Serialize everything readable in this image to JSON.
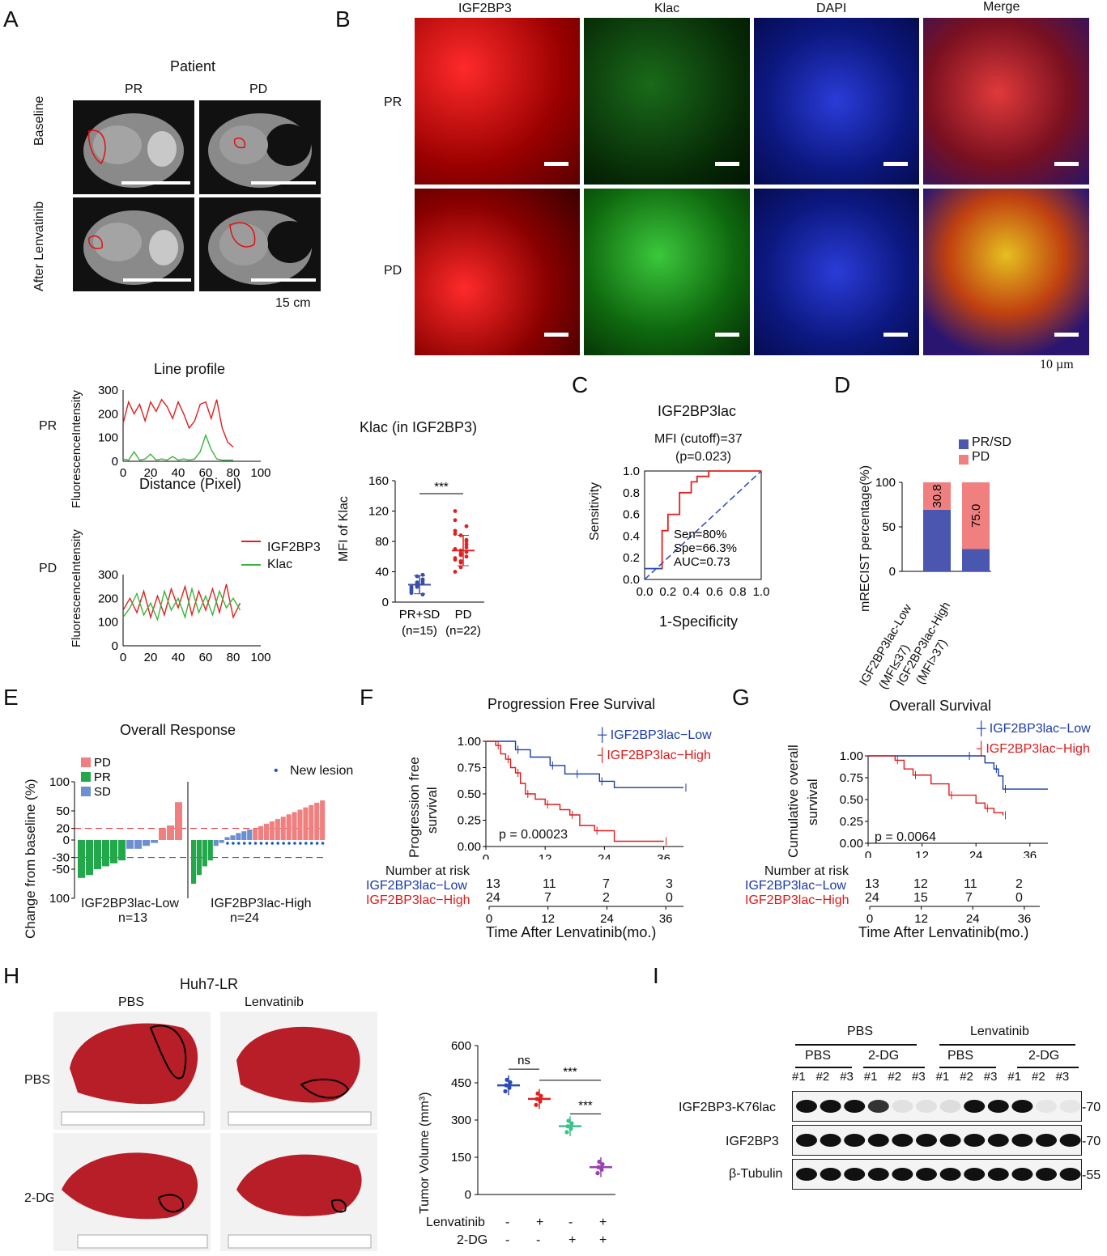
{
  "panels": {
    "A": "A",
    "B": "B",
    "C": "C",
    "D": "D",
    "E": "E",
    "F": "F",
    "G": "G",
    "H": "H",
    "I": "I"
  },
  "panelA": {
    "title": "Patient",
    "col_pr": "PR",
    "col_pd": "PD",
    "row_baseline": "Baseline",
    "row_after": "After Lenvatinib",
    "scale": "15 cm"
  },
  "panelB": {
    "cols": [
      "IGF2BP3",
      "Klac",
      "DAPI",
      "Merge"
    ],
    "rows": [
      "PR",
      "PD"
    ],
    "scale": "10 µm"
  },
  "lineProfile": {
    "title": "Line profile",
    "row_pr": "PR",
    "row_pd": "PD",
    "ylabel": "FluorescenceIntensity",
    "xlabel": "Distance (Pixel)",
    "legend": [
      "IGF2BP3",
      "Klac"
    ],
    "xticks": [
      "0",
      "20",
      "40",
      "60",
      "80",
      "100"
    ],
    "yticks": [
      "0",
      "100",
      "200",
      "300"
    ]
  },
  "klac": {
    "title": "Klac (in IGF2BP3)",
    "ylabel": "MFI of Klac",
    "sig": "***",
    "groups": [
      {
        "label": "PR+SD",
        "n": "(n=15)"
      },
      {
        "label": "PD",
        "n": "(n=22)"
      }
    ],
    "yticks": [
      "0",
      "40",
      "80",
      "120",
      "160"
    ]
  },
  "panelC": {
    "title": "IGF2BP3lac",
    "sub1": "MFI (cutoff)=37",
    "sub2": "(p=0.023)",
    "ylabel": "Sensitivity",
    "xlabel": "1-Specificity",
    "stats": [
      "Sen=80%",
      "Spe=66.3%",
      "AUC=0.73"
    ],
    "ticks": [
      "0.0",
      "0.2",
      "0.4",
      "0.6",
      "0.8",
      "1.0"
    ]
  },
  "panelD": {
    "ylabel": "mRECIST  percentage(%)",
    "legend": [
      "PR/SD",
      "PD"
    ],
    "yticks": [
      "0",
      "50",
      "100"
    ],
    "bars": [
      {
        "label": "IGF2BP3lac-Low",
        "sub": "(MFI≤37)",
        "pd": "30.8"
      },
      {
        "label": "IGF2BP3lac-High",
        "sub": "(MFI>37)",
        "pd": "75.0"
      }
    ]
  },
  "panelE": {
    "title": "Overall Response",
    "ylabel": "Change from baseline (%)",
    "legend": [
      "PD",
      "PR",
      "SD"
    ],
    "new_lesion": "New lesion",
    "yticks": [
      "100",
      "50",
      "20",
      "0",
      "-30",
      "-50",
      "-100"
    ],
    "grp_low": "IGF2BP3lac-Low",
    "n_low": "n=13",
    "grp_high": "IGF2BP3lac-High",
    "n_high": "n=24"
  },
  "panelF": {
    "title": "Progression Free Survival",
    "ylabel1": "Progression free",
    "ylabel2": "survival",
    "legend": [
      "IGF2BP3lac−Low",
      "IGF2BP3lac−High"
    ],
    "p": "p = 0.00023",
    "risk_title": "Number at risk",
    "risk_low": [
      "13",
      "11",
      "7",
      "3"
    ],
    "risk_high": [
      "24",
      "7",
      "2",
      "0"
    ],
    "xlabel": "Time After Lenvatinib(mo.)",
    "xticks": [
      "0",
      "12",
      "24",
      "36"
    ],
    "yticks": [
      "0.00",
      "0.25",
      "0.50",
      "0.75",
      "1.00"
    ]
  },
  "panelG": {
    "title": "Overall Survival",
    "ylabel1": "Cumulative overall",
    "ylabel2": "survival",
    "legend": [
      "IGF2BP3lac−Low",
      "IGF2BP3lac−High"
    ],
    "p": "p = 0.0064",
    "risk_title": "Number at risk",
    "risk_low": [
      "13",
      "12",
      "11",
      "2"
    ],
    "risk_high": [
      "24",
      "15",
      "7",
      "0"
    ],
    "xlabel": "Time After Lenvatinib(mo.)",
    "xticks": [
      "0",
      "12",
      "24",
      "36"
    ],
    "yticks": [
      "0.00",
      "0.25",
      "0.50",
      "0.75",
      "1.00"
    ]
  },
  "panelH": {
    "title": "Huh7-LR",
    "col_pbs": "PBS",
    "col_len": "Lenvatinib",
    "row_pbs": "PBS",
    "row_2dg": "2-DG",
    "ylabel": "Tumor Volume (mm³)",
    "yticks": [
      "0",
      "150",
      "300",
      "450",
      "600"
    ],
    "sig_ns": "ns",
    "sig1": "***",
    "sig2": "***",
    "row_len": "Lenvatinib",
    "row_dg": "2-DG",
    "len_signs": [
      "-",
      "+",
      "-",
      "+"
    ],
    "dg_signs": [
      "-",
      "-",
      "+",
      "+"
    ]
  },
  "panelI": {
    "top_pbs": "PBS",
    "top_len": "Lenvatinib",
    "sub": [
      "PBS",
      "2-DG",
      "PBS",
      "2-DG"
    ],
    "lanes": [
      "#1",
      "#2",
      "#3",
      "#1",
      "#2",
      "#3",
      "#1",
      "#2",
      "#3",
      "#1",
      "#2",
      "#3"
    ],
    "rows": [
      "IGF2BP3-K76lac",
      "IGF2BP3",
      "β-Tubulin"
    ],
    "mw": [
      "-70",
      "-70",
      "-55"
    ]
  },
  "chart_data": [
    {
      "type": "line",
      "title": "Line profile (PR)",
      "xlabel": "Distance (Pixel)",
      "ylabel": "FluorescenceIntensity",
      "xlim": [
        0,
        100
      ],
      "ylim": [
        0,
        300
      ],
      "series": [
        {
          "name": "IGF2BP3",
          "color": "#e02020",
          "x": [
            0,
            4,
            8,
            12,
            16,
            20,
            24,
            28,
            32,
            36,
            40,
            44,
            48,
            52,
            56,
            60,
            64,
            68,
            72,
            76,
            80
          ],
          "y": [
            160,
            250,
            200,
            240,
            170,
            250,
            210,
            260,
            230,
            180,
            250,
            200,
            140,
            170,
            240,
            250,
            180,
            260,
            140,
            80,
            60
          ]
        },
        {
          "name": "Klac",
          "color": "#3cb43c",
          "x": [
            0,
            4,
            8,
            12,
            16,
            20,
            24,
            28,
            32,
            36,
            40,
            44,
            48,
            52,
            56,
            60,
            64,
            68,
            72,
            76,
            80
          ],
          "y": [
            10,
            5,
            40,
            5,
            10,
            30,
            5,
            10,
            5,
            20,
            5,
            10,
            5,
            10,
            40,
            110,
            50,
            10,
            5,
            5,
            5
          ]
        }
      ]
    },
    {
      "type": "line",
      "title": "Line profile (PD)",
      "xlabel": "Distance (Pixel)",
      "ylabel": "FluorescenceIntensity",
      "xlim": [
        0,
        100
      ],
      "ylim": [
        0,
        300
      ],
      "series": [
        {
          "name": "IGF2BP3",
          "color": "#e02020",
          "x": [
            0,
            5,
            10,
            15,
            20,
            25,
            30,
            35,
            40,
            45,
            50,
            55,
            60,
            65,
            70,
            75,
            80,
            85
          ],
          "y": [
            150,
            200,
            140,
            230,
            120,
            210,
            130,
            240,
            160,
            250,
            130,
            230,
            150,
            240,
            140,
            260,
            120,
            180
          ]
        },
        {
          "name": "Klac",
          "color": "#3cb43c",
          "x": [
            0,
            5,
            10,
            15,
            20,
            25,
            30,
            35,
            40,
            45,
            50,
            55,
            60,
            65,
            70,
            75,
            80,
            85
          ],
          "y": [
            120,
            160,
            220,
            130,
            180,
            110,
            230,
            150,
            200,
            120,
            240,
            140,
            210,
            130,
            230,
            160,
            200,
            150
          ]
        }
      ]
    },
    {
      "type": "scatter",
      "title": "Klac (in IGF2BP3)",
      "ylabel": "MFI of Klac",
      "categories": [
        "PR+SD",
        "PD"
      ],
      "ylim": [
        0,
        160
      ],
      "series": [
        {
          "name": "PR+SD",
          "mean": 23,
          "sd": 12
        },
        {
          "name": "PD",
          "mean": 68,
          "sd": 20
        }
      ]
    },
    {
      "type": "line",
      "title": "IGF2BP3lac ROC",
      "xlabel": "1-Specificity",
      "ylabel": "Sensitivity",
      "xlim": [
        0,
        1
      ],
      "ylim": [
        0,
        1
      ],
      "series": [
        {
          "name": "ROC",
          "x": [
            0,
            0.15,
            0.15,
            0.2,
            0.2,
            0.3,
            0.3,
            0.4,
            0.4,
            0.45,
            0.45,
            0.55,
            0.55,
            0.65,
            0.65,
            1.0
          ],
          "y": [
            0.1,
            0.1,
            0.45,
            0.45,
            0.6,
            0.6,
            0.8,
            0.8,
            0.9,
            0.9,
            0.95,
            0.95,
            1.0,
            1.0,
            1.0,
            1.0
          ]
        }
      ]
    },
    {
      "type": "bar",
      "title": "mRECIST percentage",
      "categories": [
        "IGF2BP3lac-Low",
        "IGF2BP3lac-High"
      ],
      "ylabel": "mRECIST  percentage(%)",
      "series": [
        {
          "name": "PR/SD",
          "values": [
            69.2,
            25.0
          ]
        },
        {
          "name": "PD",
          "values": [
            30.8,
            75.0
          ]
        }
      ]
    },
    {
      "type": "bar",
      "title": "Overall Response",
      "ylabel": "Change from baseline (%)",
      "ylim": [
        -100,
        100
      ],
      "series": [
        {
          "name": "IGF2BP3lac-Low",
          "values": [
            -65,
            -60,
            -50,
            -45,
            -40,
            -35,
            -15,
            -15,
            -10,
            -5,
            20,
            25,
            65
          ]
        },
        {
          "name": "IGF2BP3lac-High",
          "values": [
            -75,
            -60,
            -45,
            -35,
            -10,
            -5,
            5,
            8,
            12,
            15,
            18,
            20,
            24,
            28,
            32,
            36,
            40,
            44,
            48,
            52,
            56,
            60,
            64,
            68
          ]
        }
      ]
    },
    {
      "type": "line",
      "title": "Progression Free Survival",
      "xlabel": "Time After Lenvatinib(mo.)",
      "ylim": [
        0,
        1
      ],
      "xlim": [
        0,
        40
      ],
      "series": [
        {
          "name": "IGF2BP3lac−Low",
          "x": [
            0,
            6,
            9,
            13,
            16,
            18,
            20,
            23,
            26,
            40
          ],
          "y": [
            1.0,
            0.92,
            0.85,
            0.77,
            0.69,
            0.69,
            0.69,
            0.62,
            0.56,
            0.56
          ]
        },
        {
          "name": "IGF2BP3lac−High",
          "x": [
            0,
            2,
            3,
            4,
            5,
            6,
            7,
            8,
            10,
            12,
            15,
            17,
            19,
            22,
            26,
            36
          ],
          "y": [
            1.0,
            0.96,
            0.88,
            0.83,
            0.75,
            0.7,
            0.6,
            0.5,
            0.45,
            0.4,
            0.35,
            0.3,
            0.2,
            0.15,
            0.05,
            0.05
          ]
        }
      ]
    },
    {
      "type": "line",
      "title": "Overall Survival",
      "xlabel": "Time After Lenvatinib(mo.)",
      "ylim": [
        0,
        1
      ],
      "xlim": [
        0,
        40
      ],
      "series": [
        {
          "name": "IGF2BP3lac−Low",
          "x": [
            0,
            22,
            26,
            28,
            29,
            30,
            40
          ],
          "y": [
            1.0,
            1.0,
            0.92,
            0.85,
            0.77,
            0.62,
            0.62
          ]
        },
        {
          "name": "IGF2BP3lac−High",
          "x": [
            0,
            6,
            8,
            10,
            14,
            18,
            24,
            26,
            28,
            30
          ],
          "y": [
            1.0,
            0.95,
            0.85,
            0.78,
            0.68,
            0.55,
            0.46,
            0.4,
            0.35,
            0.32
          ]
        }
      ]
    },
    {
      "type": "scatter",
      "title": "Tumor Volume",
      "ylabel": "Tumor Volume (mm³)",
      "ylim": [
        0,
        600
      ],
      "categories": [
        "PBS",
        "Lenvatinib",
        "2-DG",
        "Lenvatinib+2-DG"
      ],
      "series": [
        {
          "name": "mean",
          "values": [
            440,
            385,
            275,
            110
          ]
        }
      ]
    }
  ]
}
